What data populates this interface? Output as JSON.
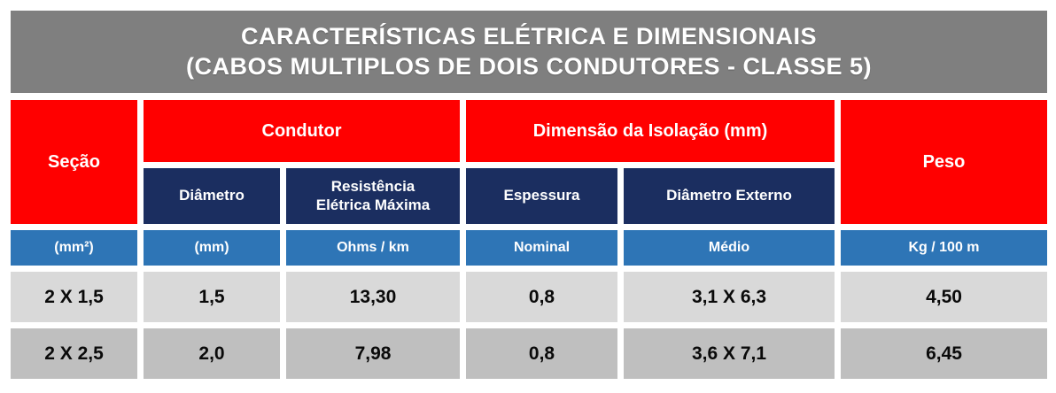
{
  "title": {
    "line1": "CARACTERÍSTICAS ELÉTRICA E DIMENSIONAIS",
    "line2": "(CABOS MULTIPLOS DE DOIS CONDUTORES - CLASSE 5)"
  },
  "table": {
    "groups": {
      "secao": "Seção",
      "condutor": "Condutor",
      "isolacao": "Dimensão da Isolação (mm)",
      "peso": "Peso"
    },
    "subheaders": {
      "diametro": "Diâmetro",
      "resistencia": "Resistência Elétrica Máxima",
      "espessura": "Espessura",
      "diametro_externo": "Diâmetro Externo"
    },
    "units": [
      "(mm²)",
      "(mm)",
      "Ohms / km",
      "Nominal",
      "Médio",
      "Kg / 100 m"
    ],
    "rows": [
      [
        "2 X 1,5",
        "1,5",
        "13,30",
        "0,8",
        "3,1 X 6,3",
        "4,50"
      ],
      [
        "2 X 2,5",
        "2,0",
        "7,98",
        "0,8",
        "3,6 X 7,1",
        "6,45"
      ]
    ]
  },
  "colors": {
    "title_bg": "#7F7F7F",
    "group_bg": "#FF0000",
    "subheader_bg": "#1B2E60",
    "units_bg": "#2E75B6",
    "row1_bg": "#D9D9D9",
    "row2_bg": "#BFBFBF",
    "header_text": "#FFFFFF",
    "data_text": "#0A0A0A"
  }
}
